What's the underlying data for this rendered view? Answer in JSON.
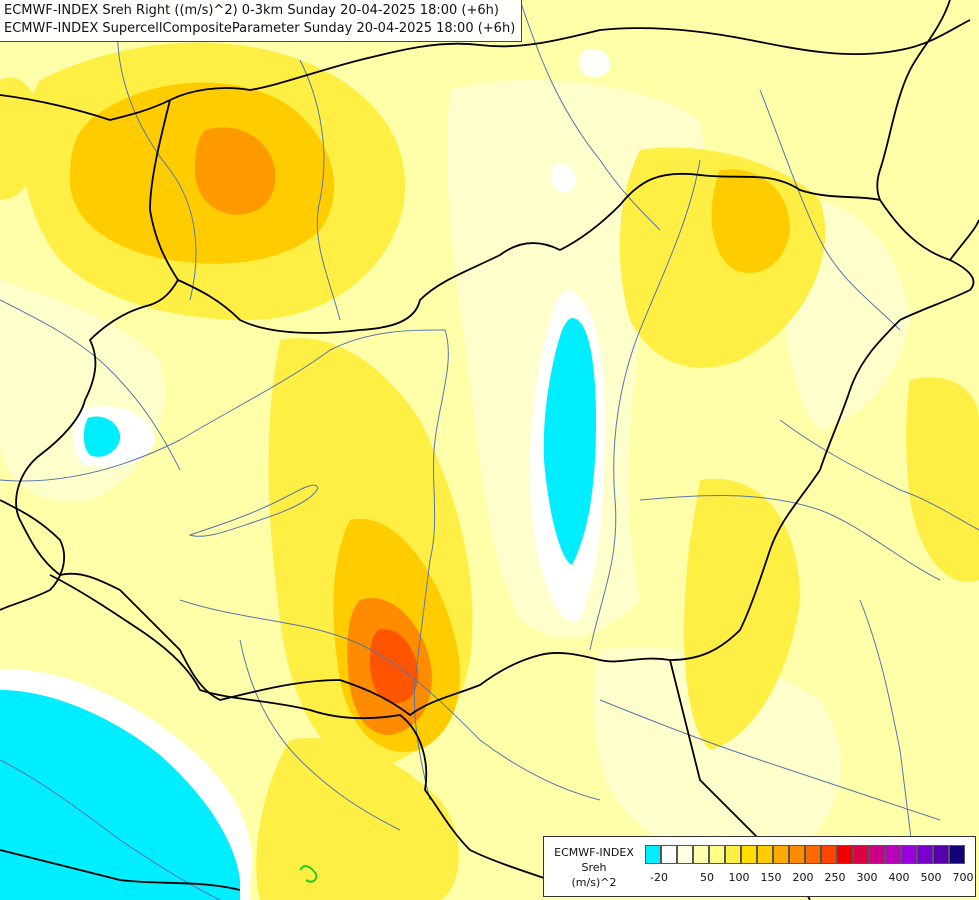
{
  "titles": {
    "line1": "ECMWF-INDEX Sreh Right ((m/s)^2) 0-3km Sunday 20-04-2025 18:00 (+6h)",
    "line2": "ECMWF-INDEX SupercellCompositeParameter Sunday 20-04-2025 18:00 (+6h)"
  },
  "legend": {
    "title_line1": "ECMWF-INDEX",
    "title_line2": "Sreh",
    "title_line3": "(m/s)^2",
    "colors": [
      "#00eeff",
      "#ffffff",
      "#ffffe0",
      "#ffffb0",
      "#ffff88",
      "#ffee44",
      "#ffdd00",
      "#ffcc00",
      "#ffaa00",
      "#ff8c00",
      "#ff6a00",
      "#ff4500",
      "#ee0000",
      "#dd0044",
      "#cc0088",
      "#bb00bb",
      "#9900dd",
      "#7700cc",
      "#5500aa",
      "#110077"
    ],
    "labels": [
      "-20",
      "50",
      "100",
      "150",
      "200",
      "250",
      "300",
      "400",
      "500",
      "700"
    ]
  },
  "colors": {
    "background": "#ffffcc",
    "negative": "#00eeff",
    "border_line": "#000000",
    "river_line": "#5577aa"
  }
}
